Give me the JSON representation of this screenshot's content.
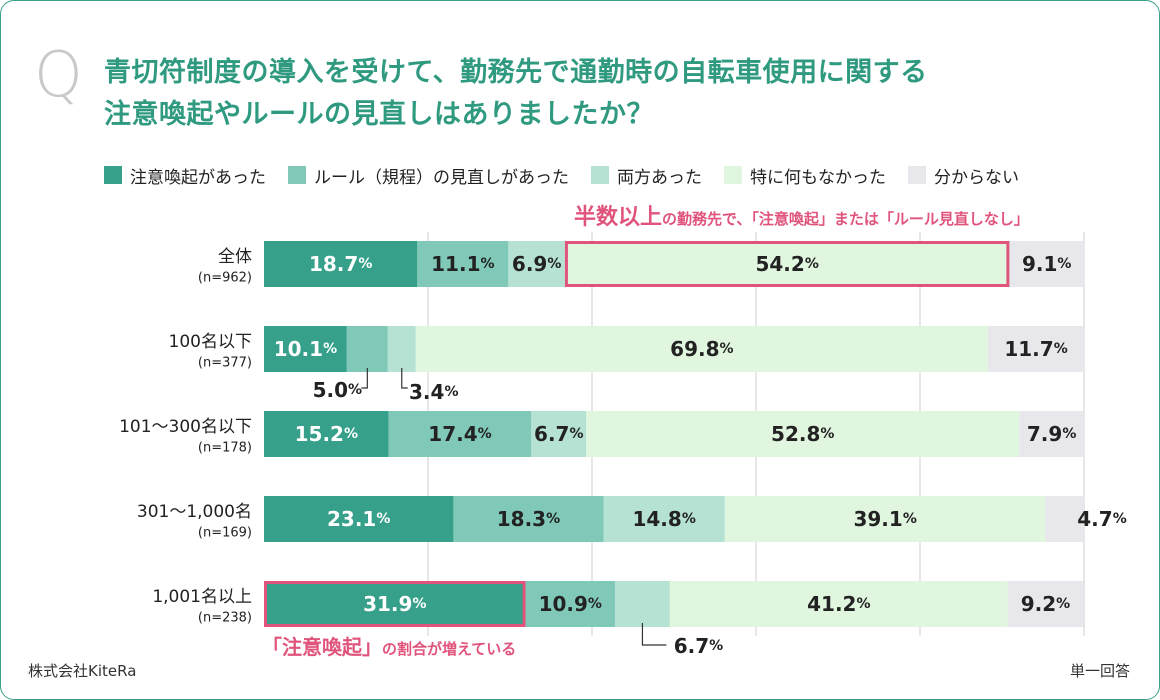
{
  "header": {
    "q_mark": "Q",
    "title_line1": "青切符制度の導入を受けて、勤務先で通勤時の自転車使用に関する",
    "title_line2": "注意喚起やルールの見直しはありましたか？"
  },
  "colors": {
    "s1": "#36a08b",
    "s2": "#80c9b8",
    "s3": "#b5e2d2",
    "s4": "#e0f6df",
    "s5": "#e8e7ec",
    "accent": "#e0547c",
    "grid": "#cfcfcf"
  },
  "chart_data": {
    "type": "bar",
    "orientation": "horizontal",
    "stacked": true,
    "unit": "%",
    "xlim": [
      0,
      100
    ],
    "categories": [
      "全体",
      "100名以下",
      "101〜300名以下",
      "301〜1,000名",
      "1,001名以上"
    ],
    "sublabels": [
      "(n=962)",
      "(n=377)",
      "(n=178)",
      "(n=169)",
      "(n=238)"
    ],
    "series": [
      {
        "name": "注意喚起があった",
        "values": [
          18.7,
          10.1,
          15.2,
          23.1,
          31.9
        ]
      },
      {
        "name": "ルール（規程）の見直しがあった",
        "values": [
          11.1,
          5.0,
          17.4,
          18.3,
          10.9
        ]
      },
      {
        "name": "両方あった",
        "values": [
          6.9,
          3.4,
          6.7,
          14.8,
          6.7
        ]
      },
      {
        "name": "特に何もなかった",
        "values": [
          54.2,
          69.8,
          52.8,
          39.1,
          41.2
        ]
      },
      {
        "name": "分からない",
        "values": [
          9.1,
          11.7,
          7.9,
          4.7,
          9.2
        ]
      }
    ],
    "annotations": {
      "top_big": "半数以上",
      "top_small": "の勤務先で、「注意喚起」または「ルール見直しなし」",
      "bottom_big": "「注意喚起」",
      "bottom_small": "の割合が増えている"
    }
  },
  "footer": {
    "company": "株式会社KiteRa",
    "note": "単一回答"
  }
}
